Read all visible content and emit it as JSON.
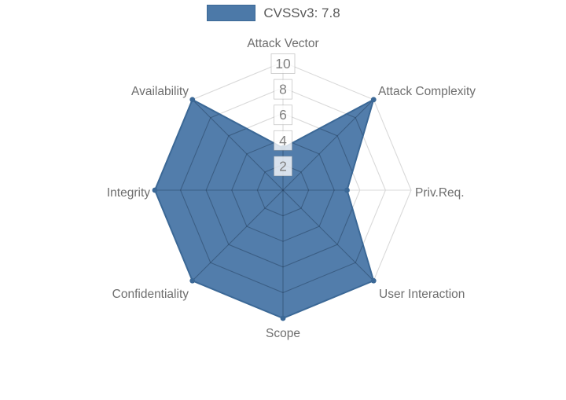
{
  "page": {
    "background": "#ffffff"
  },
  "legend": {
    "position": "top",
    "items": [
      {
        "label": "CVSSv3: 7.8",
        "fill": "#4c79a8",
        "border": "#3b6896"
      }
    ]
  },
  "chart_data": {
    "type": "radar",
    "title": "",
    "axes": [
      "Attack Vector",
      "Attack Complexity",
      "Priv.Req.",
      "User Interaction",
      "Scope",
      "Confidentiality",
      "Integrity",
      "Availability"
    ],
    "series": [
      {
        "name": "CVSSv3: 7.8",
        "values": [
          3.3,
          10,
          5,
          10,
          10,
          10,
          10,
          10
        ],
        "fill": "#4c79a8",
        "fill_opacity": 0.97,
        "border": "#3b6896"
      }
    ],
    "scale": {
      "min": 0,
      "max": 10,
      "ticks": [
        2,
        4,
        6,
        8,
        10
      ]
    },
    "grid": {
      "show": true,
      "shape": "polygon",
      "color": "#d9d9d9",
      "inner_color": "rgba(24,44,72,0.38)"
    },
    "tick_style": {
      "color": "#7f7f7f",
      "backdrop": "rgba(255,255,255,0.78)",
      "backdrop_border": "rgba(130,130,130,0.45)"
    },
    "axis_label_color": "#6e6e6e",
    "legend_position": "top"
  }
}
